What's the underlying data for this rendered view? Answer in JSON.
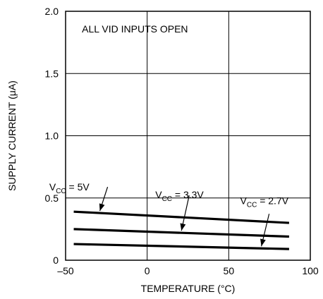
{
  "chart_data": {
    "type": "line",
    "xlabel": "TEMPERATURE (°C)",
    "ylabel": "SUPPLY CURRENT (μA)",
    "xlim": [
      -50,
      100
    ],
    "ylim": [
      0,
      2.0
    ],
    "xticks": [
      -50,
      0,
      50,
      100
    ],
    "xtick_labels": [
      "–50",
      "0",
      "50",
      "100"
    ],
    "yticks": [
      0,
      0.5,
      1.0,
      1.5,
      2.0
    ],
    "ytick_labels": [
      "0",
      "0.5",
      "1.0",
      "1.5",
      "2.0"
    ],
    "grid": true,
    "annotation": "ALL VID INPUTS OPEN",
    "series": [
      {
        "name": "VCC = 5V",
        "label_main": "V",
        "label_sub": "CC",
        "label_rest": " = 5V",
        "x": [
          -45,
          87
        ],
        "y": [
          0.39,
          0.3
        ]
      },
      {
        "name": "VCC = 3.3V",
        "label_main": "V",
        "label_sub": "CC",
        "label_rest": " = 3.3V",
        "x": [
          -45,
          87
        ],
        "y": [
          0.25,
          0.19
        ]
      },
      {
        "name": "VCC = 2.7V",
        "label_main": "V",
        "label_sub": "CC",
        "label_rest": " = 2.7V",
        "x": [
          -45,
          87
        ],
        "y": [
          0.13,
          0.09
        ]
      }
    ]
  }
}
